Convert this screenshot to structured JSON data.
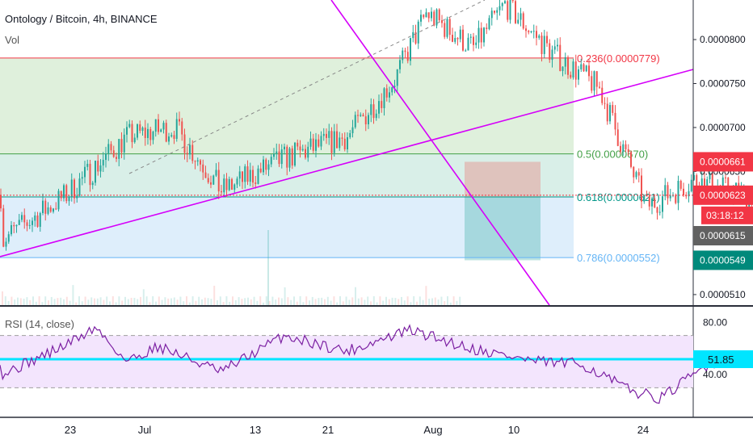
{
  "header": {
    "symbol_title": "Ontology / Bitcoin, 4h, BINANCE",
    "volume_label": "Vol",
    "rsi_label": "RSI (14, close)"
  },
  "colors": {
    "candle_up": "#26a69a",
    "candle_down": "#ef5350",
    "fib_0236": "#f23645",
    "fib_05": "#43a047",
    "fib_0618": "#009688",
    "fib_0786": "#64b5f6",
    "trendline": "#d500f9",
    "rsi_line": "#7b1fa2",
    "rsi_band_fill": "#f3e5fd",
    "rsi_level": "#00e5ff",
    "price_tag_red": "#f23645",
    "price_tag_green": "#00897b",
    "price_tag_gray": "#616161"
  },
  "fib_labels": {
    "f0236": "0.236(0.0000779)",
    "f05": "0.5(0.0000670)",
    "f0618": "0.618(0.0000621)",
    "f0786": "0.786(0.0000552)"
  },
  "price_axis": {
    "ticks": [
      "0.0000800",
      "0.0000750",
      "0.0000700",
      "0.0000650",
      "0.0000510"
    ],
    "tags": {
      "position_top": "0.0000661",
      "current_price": "0.0000623",
      "countdown": "03:18:12",
      "crosshair": "0.0000615",
      "position_bottom": "0.0000549"
    }
  },
  "rsi_axis": {
    "ticks": [
      "80.00",
      "40.00"
    ],
    "value_tag": "51.85"
  },
  "time_axis": {
    "labels": [
      "23",
      "Jul",
      "13",
      "21",
      "Aug",
      "10",
      "24"
    ]
  },
  "chart_data": {
    "type": "candlestick",
    "title": "Ontology / Bitcoin, 4h, BINANCE",
    "timeframe": "4h",
    "exchange": "BINANCE",
    "price_range": [
      5.1e-05,
      8.45e-05
    ],
    "key_close_path": [
      {
        "date": "Jun 17",
        "close": 5.72e-05
      },
      {
        "date": "Jun 21",
        "close": 6.22e-05
      },
      {
        "date": "Jun 25",
        "close": 6.9e-05
      },
      {
        "date": "Jun 28",
        "close": 7e-05
      },
      {
        "date": "Jul 1",
        "close": 6.28e-05
      },
      {
        "date": "Jul 5",
        "close": 6.65e-05
      },
      {
        "date": "Jul 9",
        "close": 6.9e-05
      },
      {
        "date": "Jul 12",
        "close": 7.55e-05
      },
      {
        "date": "Jul 14",
        "close": 8.3e-05
      },
      {
        "date": "Jul 17",
        "close": 7.9e-05
      },
      {
        "date": "Jul 19",
        "close": 8.4e-05
      },
      {
        "date": "Jul 22",
        "close": 7.85e-05
      },
      {
        "date": "Jul 25",
        "close": 7.45e-05
      },
      {
        "date": "Jul 27",
        "close": 6.55e-05
      },
      {
        "date": "Jul 28",
        "close": 6.1e-05
      },
      {
        "date": "Jul 31",
        "close": 6.4e-05
      },
      {
        "date": "Aug 3",
        "close": 6.25e-05
      },
      {
        "date": "Aug 5",
        "close": 6.23e-05
      }
    ],
    "fibonacci_levels": [
      {
        "ratio": 0.236,
        "price": 7.79e-05
      },
      {
        "ratio": 0.5,
        "price": 6.7e-05
      },
      {
        "ratio": 0.618,
        "price": 6.21e-05
      },
      {
        "ratio": 0.786,
        "price": 5.52e-05
      }
    ],
    "last_price": 6.23e-05,
    "position": {
      "stop": 6.61e-05,
      "entry": 6.21e-05,
      "target": 5.49e-05
    },
    "rsi": {
      "period": 14,
      "value": 51.85,
      "upper_band": 70,
      "lower_band": 30,
      "series": [
        {
          "date": "Jun 17",
          "value": 40
        },
        {
          "date": "Jun 21",
          "value": 62
        },
        {
          "date": "Jun 23",
          "value": 76
        },
        {
          "date": "Jun 25",
          "value": 50
        },
        {
          "date": "Jun 27",
          "value": 62
        },
        {
          "date": "Jul 1",
          "value": 42
        },
        {
          "date": "Jul 5",
          "value": 70
        },
        {
          "date": "Jul 9",
          "value": 58
        },
        {
          "date": "Jul 13",
          "value": 74
        },
        {
          "date": "Jul 17",
          "value": 60
        },
        {
          "date": "Jul 21",
          "value": 50
        },
        {
          "date": "Jul 24",
          "value": 48
        },
        {
          "date": "Jul 27",
          "value": 28
        },
        {
          "date": "Jul 29",
          "value": 22
        },
        {
          "date": "Aug 1",
          "value": 48
        },
        {
          "date": "Aug 3",
          "value": 53
        },
        {
          "date": "Aug 5",
          "value": 51.85
        }
      ]
    },
    "grid": false
  }
}
